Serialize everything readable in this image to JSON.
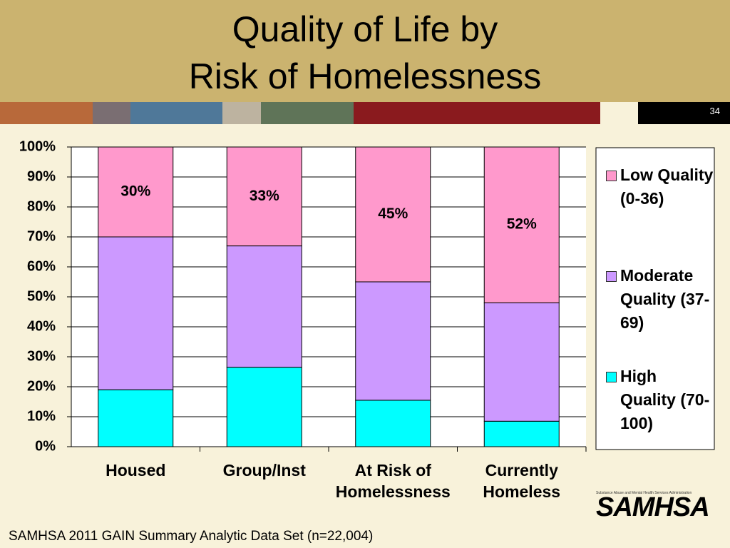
{
  "header": {
    "title_lines": [
      "Quality of Life by",
      "Risk of Homelessness"
    ],
    "slide_number": "34"
  },
  "chart_data": {
    "type": "stacked-bar",
    "categories": [
      "Housed",
      "Group/Inst",
      "At Risk of Homelessness",
      "Currently Homeless"
    ],
    "series": [
      {
        "name": "High Quality (70-100)",
        "color": "#00ffff",
        "values": [
          19,
          26.5,
          15.5,
          8.5
        ]
      },
      {
        "name": "Moderate Quality (37-69)",
        "color": "#cc99ff",
        "values": [
          51,
          40.5,
          39.5,
          39.5
        ]
      },
      {
        "name": "Low Quality (0-36)",
        "color": "#ff99cc",
        "values": [
          30,
          33,
          45,
          52
        ],
        "value_labels": [
          "30%",
          "33%",
          "45%",
          "52%"
        ]
      }
    ],
    "ylim": [
      0,
      100
    ],
    "yticks": [
      {
        "value": 0,
        "label": "0%"
      },
      {
        "value": 10,
        "label": "10%"
      },
      {
        "value": 20,
        "label": "20%"
      },
      {
        "value": 30,
        "label": "30%"
      },
      {
        "value": 40,
        "label": "40%"
      },
      {
        "value": 50,
        "label": "50%"
      },
      {
        "value": 60,
        "label": "60%"
      },
      {
        "value": 70,
        "label": "70%"
      },
      {
        "value": 80,
        "label": "80%"
      },
      {
        "value": 90,
        "label": "90%"
      },
      {
        "value": 100,
        "label": "100%"
      }
    ],
    "grid": true,
    "legend": "right"
  },
  "footer": {
    "source": "SAMHSA 2011 GAIN Summary Analytic Data Set (n=22,004)",
    "logo": "SAMHSA",
    "logo_subtitle": "Substance Abuse and Mental Health Services Administration"
  }
}
